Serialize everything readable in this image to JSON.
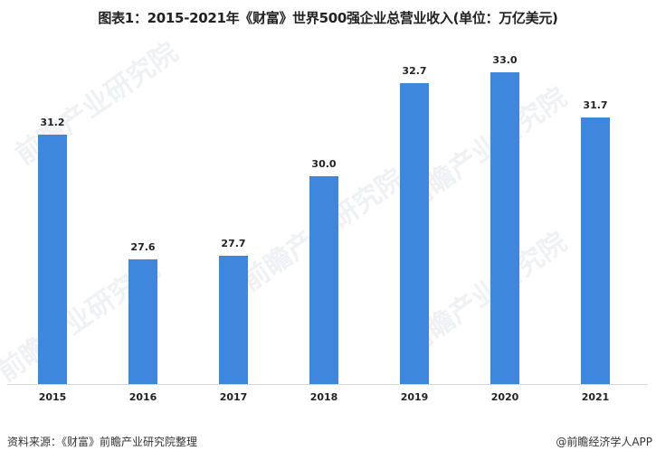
{
  "title": "图表1：2015-2021年《财富》世界500强企业总营业收入(单位：万亿美元)",
  "footer": {
    "source": "资料来源：《财富》前瞻产业研究院整理",
    "credit": "@前瞻经济学人APP"
  },
  "watermark": "前瞻产业研究院",
  "colors": {
    "bar": "#3f86dd",
    "baseline": "#d9d9d9"
  },
  "chart_data": {
    "type": "bar",
    "title": "图表1：2015-2021年《财富》世界500强企业总营业收入(单位：万亿美元)",
    "categories": [
      "2015",
      "2016",
      "2017",
      "2018",
      "2019",
      "2020",
      "2021"
    ],
    "values": [
      31.2,
      27.6,
      27.7,
      30.0,
      32.7,
      33.0,
      31.7
    ],
    "labels": [
      "31.2",
      "27.6",
      "27.7",
      "30.0",
      "32.7",
      "33.0",
      "31.7"
    ],
    "xlabel": "",
    "ylabel": "万亿美元",
    "ylim": [
      24,
      34
    ],
    "grid": false,
    "legend": "none",
    "data_labels": true
  }
}
